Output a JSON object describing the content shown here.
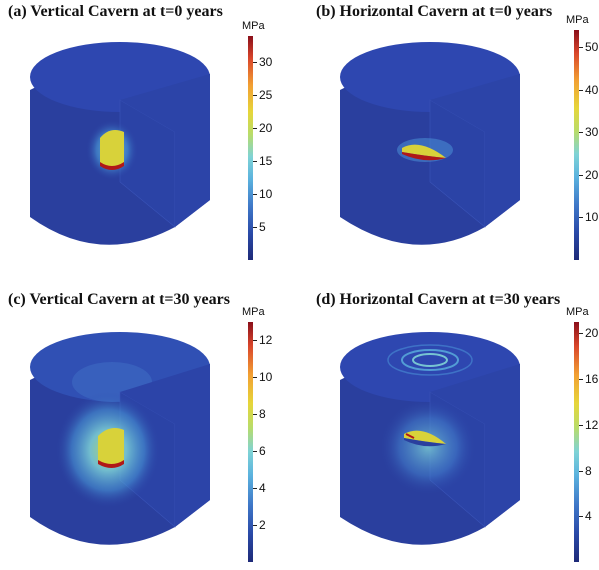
{
  "panels": [
    {
      "title": "(a) Vertical Cavern at t=0 years",
      "colorbar": {
        "unit": "MPa",
        "min": 0,
        "max": 34,
        "ticks": [
          "30",
          "25",
          "20",
          "15",
          "10",
          "5"
        ],
        "tick_values": [
          30,
          25,
          20,
          15,
          10,
          5
        ]
      },
      "cavern": "vertical"
    },
    {
      "title": "(b) Horizontal Cavern at t=0 years",
      "colorbar": {
        "unit": "MPa",
        "min": 0,
        "max": 54,
        "ticks": [
          "50",
          "40",
          "30",
          "20",
          "10"
        ],
        "tick_values": [
          50,
          40,
          30,
          20,
          10
        ]
      },
      "cavern": "horizontal"
    },
    {
      "title": "(c) Vertical Cavern at t=30 years",
      "colorbar": {
        "unit": "MPa",
        "min": 0,
        "max": 13,
        "ticks": [
          "12",
          "10",
          "8",
          "6",
          "4",
          "2"
        ],
        "tick_values": [
          12,
          10,
          8,
          6,
          4,
          2
        ]
      },
      "cavern": "vertical"
    },
    {
      "title": "(d) Horizontal Cavern at t=30 years",
      "colorbar": {
        "unit": "MPa",
        "min": 0,
        "max": 21,
        "ticks": [
          "20",
          "16",
          "12",
          "8",
          "4"
        ],
        "tick_values": [
          20,
          16,
          12,
          8,
          4
        ]
      },
      "cavern": "horizontal"
    }
  ],
  "colors": {
    "rock_top": "#2e47b0",
    "rock_front": "#2a3f9e",
    "rock_cut": "#2b43a6",
    "halo": "#5bbbe0",
    "cavern_yellow": "#d8d23a",
    "cavern_red": "#b01818"
  }
}
